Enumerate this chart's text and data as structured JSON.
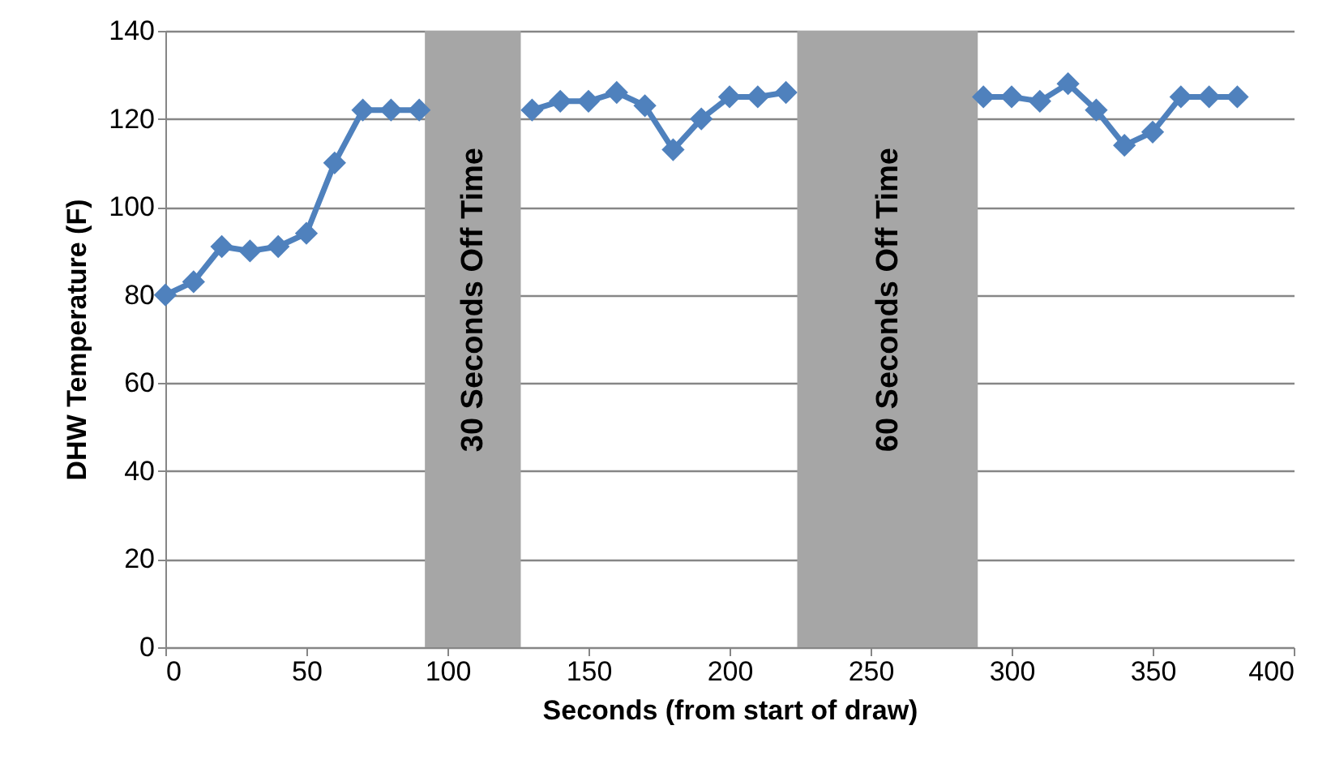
{
  "chart_data": {
    "type": "line",
    "xlabel": "Seconds (from start of draw)",
    "ylabel": "DHW Temperature (F)",
    "x": [
      0,
      10,
      20,
      30,
      40,
      50,
      60,
      70,
      80,
      90,
      100,
      110,
      120,
      130,
      140,
      150,
      160,
      170,
      180,
      190,
      200,
      210,
      220,
      230,
      240,
      250,
      260,
      270,
      280,
      290,
      300,
      310,
      320,
      330,
      340,
      350,
      360,
      370,
      380
    ],
    "series": [
      {
        "color": "#4f81bd",
        "values": [
          80,
          83,
          91,
          90,
          91,
          94,
          110,
          122,
          122,
          122,
          null,
          null,
          null,
          122,
          124,
          124,
          126,
          123,
          113,
          120,
          125,
          125,
          126,
          null,
          null,
          null,
          null,
          null,
          null,
          125,
          125,
          124,
          128,
          122,
          114,
          117,
          125,
          125,
          125
        ]
      }
    ],
    "xlim": [
      0,
      400
    ],
    "xticks": [
      0,
      50,
      100,
      150,
      200,
      250,
      300,
      350,
      400
    ],
    "ylim": [
      0,
      140
    ],
    "yticks": [
      0,
      20,
      40,
      60,
      80,
      100,
      120,
      140
    ],
    "grid": "y",
    "marker": "diamond",
    "line_style": "solid",
    "bands": [
      {
        "axis": "x",
        "from": 92,
        "to": 126,
        "label": "30 Seconds Off Time",
        "color": "#a6a6a6"
      },
      {
        "axis": "x",
        "from": 224,
        "to": 288,
        "label": "60 Seconds Off Time",
        "color": "#a6a6a6"
      }
    ]
  }
}
